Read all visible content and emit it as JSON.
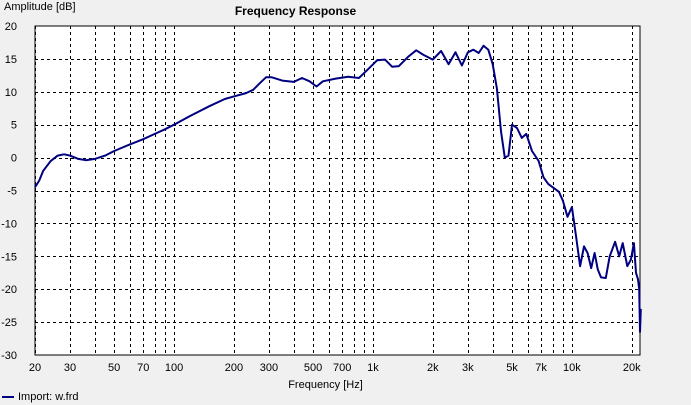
{
  "chart_data": {
    "type": "line",
    "title": "Frequency Response",
    "ylabel": "Amplitude [dB]",
    "xlabel": "Frequency [Hz]",
    "xscale": "log",
    "xlim": [
      20,
      22000
    ],
    "ylim": [
      -30,
      20
    ],
    "grid": true,
    "line_color": "#000080",
    "yticks": [
      20,
      15,
      10,
      5,
      0,
      -5,
      -10,
      -15,
      -20,
      -25,
      -30
    ],
    "xticks": [
      {
        "value": 20,
        "label": "20"
      },
      {
        "value": 30,
        "label": "30"
      },
      {
        "value": 50,
        "label": "50"
      },
      {
        "value": 70,
        "label": "70"
      },
      {
        "value": 100,
        "label": "100"
      },
      {
        "value": 200,
        "label": "200"
      },
      {
        "value": 300,
        "label": "300"
      },
      {
        "value": 500,
        "label": "500"
      },
      {
        "value": 700,
        "label": "700"
      },
      {
        "value": 1000,
        "label": "1k"
      },
      {
        "value": 2000,
        "label": "2k"
      },
      {
        "value": 3000,
        "label": "3k"
      },
      {
        "value": 5000,
        "label": "5k"
      },
      {
        "value": 7000,
        "label": "7k"
      },
      {
        "value": 10000,
        "label": "10k"
      },
      {
        "value": 20000,
        "label": "20k"
      }
    ],
    "legend": {
      "position": "bottom-left",
      "label": "Import: w.frd"
    },
    "series": [
      {
        "name": "Import: w.frd",
        "points": [
          [
            20,
            -4.5
          ],
          [
            21,
            -3.5
          ],
          [
            22,
            -2.0
          ],
          [
            24,
            -0.5
          ],
          [
            26,
            0.3
          ],
          [
            28,
            0.5
          ],
          [
            30,
            0.3
          ],
          [
            33,
            -0.2
          ],
          [
            36,
            -0.4
          ],
          [
            40,
            -0.2
          ],
          [
            45,
            0.3
          ],
          [
            50,
            1.0
          ],
          [
            60,
            2.0
          ],
          [
            70,
            2.8
          ],
          [
            80,
            3.6
          ],
          [
            90,
            4.3
          ],
          [
            100,
            5.0
          ],
          [
            120,
            6.3
          ],
          [
            150,
            7.8
          ],
          [
            180,
            8.9
          ],
          [
            200,
            9.3
          ],
          [
            230,
            9.8
          ],
          [
            250,
            10.3
          ],
          [
            270,
            11.3
          ],
          [
            290,
            12.2
          ],
          [
            310,
            12.2
          ],
          [
            350,
            11.7
          ],
          [
            400,
            11.5
          ],
          [
            440,
            12.1
          ],
          [
            480,
            11.6
          ],
          [
            520,
            10.8
          ],
          [
            560,
            11.6
          ],
          [
            650,
            12.0
          ],
          [
            750,
            12.3
          ],
          [
            850,
            12.1
          ],
          [
            950,
            13.5
          ],
          [
            1050,
            14.8
          ],
          [
            1150,
            14.9
          ],
          [
            1250,
            13.8
          ],
          [
            1350,
            13.9
          ],
          [
            1500,
            15.3
          ],
          [
            1650,
            16.3
          ],
          [
            1800,
            15.6
          ],
          [
            2000,
            14.9
          ],
          [
            2200,
            16.2
          ],
          [
            2400,
            14.2
          ],
          [
            2600,
            16.0
          ],
          [
            2800,
            14.0
          ],
          [
            3000,
            16.0
          ],
          [
            3200,
            16.4
          ],
          [
            3400,
            15.9
          ],
          [
            3600,
            17.0
          ],
          [
            3800,
            16.4
          ],
          [
            4000,
            14.2
          ],
          [
            4200,
            10.5
          ],
          [
            4400,
            4.0
          ],
          [
            4600,
            0.0
          ],
          [
            4800,
            0.3
          ],
          [
            5000,
            5.0
          ],
          [
            5300,
            4.5
          ],
          [
            5600,
            3.0
          ],
          [
            5900,
            3.6
          ],
          [
            6300,
            1.0
          ],
          [
            6800,
            -0.5
          ],
          [
            7200,
            -3.0
          ],
          [
            7600,
            -4.0
          ],
          [
            8000,
            -4.5
          ],
          [
            8600,
            -5.2
          ],
          [
            9000,
            -6.5
          ],
          [
            9500,
            -9.0
          ],
          [
            10000,
            -7.5
          ],
          [
            10500,
            -12.0
          ],
          [
            11000,
            -16.5
          ],
          [
            11500,
            -13.5
          ],
          [
            12000,
            -14.5
          ],
          [
            12500,
            -16.8
          ],
          [
            13000,
            -14.5
          ],
          [
            13500,
            -17.0
          ],
          [
            14000,
            -18.2
          ],
          [
            14800,
            -18.3
          ],
          [
            15500,
            -15.0
          ],
          [
            16500,
            -12.8
          ],
          [
            17300,
            -15.0
          ],
          [
            18000,
            -13.0
          ],
          [
            19000,
            -16.5
          ],
          [
            19800,
            -15.5
          ],
          [
            20500,
            -13.0
          ],
          [
            21000,
            -17.5
          ],
          [
            21500,
            -18.5
          ],
          [
            21800,
            -20.0
          ],
          [
            22000,
            -26.5
          ],
          [
            22200,
            -23.0
          ]
        ]
      }
    ]
  }
}
